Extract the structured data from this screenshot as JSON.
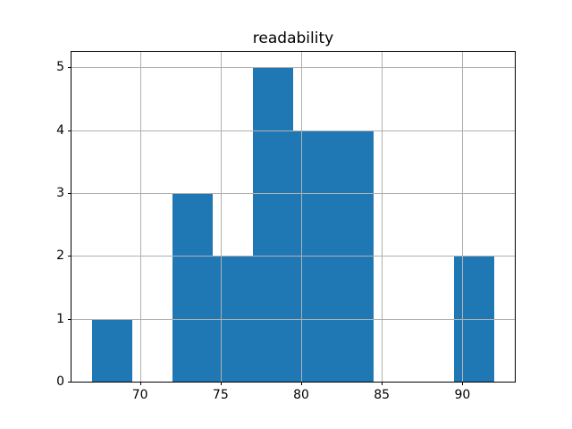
{
  "chart_data": {
    "type": "bar",
    "subtype": "histogram",
    "title": "readability",
    "xlabel": "",
    "ylabel": "",
    "bin_edges": [
      67,
      69.5,
      72,
      74.5,
      77,
      79.5,
      82,
      84.5,
      87,
      89.5,
      92
    ],
    "counts": [
      1,
      0,
      3,
      2,
      5,
      4,
      4,
      0,
      0,
      2
    ],
    "xticks": [
      70,
      75,
      80,
      85,
      90
    ],
    "yticks": [
      0,
      1,
      2,
      3,
      4,
      5
    ],
    "xlim": [
      65.75,
      93.25
    ],
    "ylim": [
      0,
      5.25
    ],
    "grid": "on",
    "legend": "none",
    "bar_color": "#1f77b4",
    "grid_color": "#b0b0b0",
    "spine_color": "#000000",
    "background_color": "#ffffff"
  }
}
